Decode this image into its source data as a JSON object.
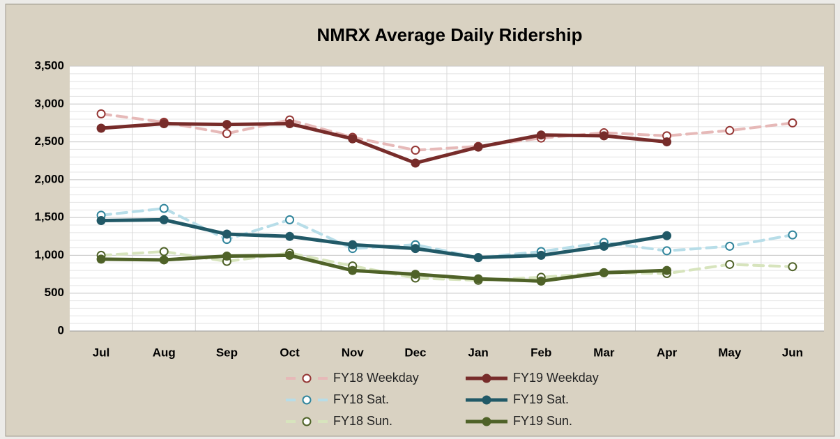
{
  "chart_data": {
    "type": "line",
    "title": "NMRX Average Daily Ridership",
    "categories": [
      "Jul",
      "Aug",
      "Sep",
      "Oct",
      "Nov",
      "Dec",
      "Jan",
      "Feb",
      "Mar",
      "Apr",
      "May",
      "Jun"
    ],
    "ylim": [
      0,
      3500
    ],
    "yticks": [
      0,
      {
        "value": 500,
        "label": "500"
      },
      {
        "value": 1000,
        "label": "1,000"
      },
      {
        "value": 1500,
        "label": "1,500"
      },
      {
        "value": 2000,
        "label": "2,000"
      },
      {
        "value": 2500,
        "label": "2,500"
      },
      {
        "value": 3000,
        "label": "3,000"
      },
      {
        "value": 3500,
        "label": "3,500"
      }
    ],
    "minor_grid": 100,
    "grid": true,
    "legend": "bottom",
    "series": [
      {
        "name": "FY18 Weekday",
        "color": "#e6b9b8",
        "marker_color": "#953735",
        "dash": true,
        "values": [
          2870,
          2760,
          2610,
          2790,
          2560,
          2390,
          2440,
          2550,
          2620,
          2580,
          2650,
          2750
        ]
      },
      {
        "name": "FY19 Weekday",
        "color": "#772c2a",
        "marker_color": "#772c2a",
        "dash": false,
        "values": [
          2680,
          2740,
          2730,
          2740,
          2540,
          2220,
          2430,
          2590,
          2580,
          2500,
          null,
          null
        ]
      },
      {
        "name": "FY18 Sat.",
        "color": "#b7dde8",
        "marker_color": "#31859c",
        "dash": true,
        "values": [
          1530,
          1620,
          1210,
          1470,
          1090,
          1140,
          970,
          1050,
          1170,
          1060,
          1120,
          1270
        ]
      },
      {
        "name": "FY19 Sat.",
        "color": "#215967",
        "marker_color": "#215967",
        "dash": false,
        "values": [
          1460,
          1470,
          1280,
          1250,
          1140,
          1090,
          970,
          1000,
          1120,
          1260,
          null,
          null
        ]
      },
      {
        "name": "FY18 Sun.",
        "color": "#d7e4bd",
        "marker_color": "#4f6228",
        "dash": true,
        "values": [
          1000,
          1050,
          920,
          1030,
          860,
          700,
          670,
          710,
          770,
          760,
          880,
          850
        ]
      },
      {
        "name": "FY19 Sun.",
        "color": "#4f6228",
        "marker_color": "#4f6228",
        "dash": false,
        "values": [
          950,
          940,
          990,
          1000,
          800,
          750,
          690,
          660,
          770,
          800,
          null,
          null
        ]
      }
    ]
  }
}
